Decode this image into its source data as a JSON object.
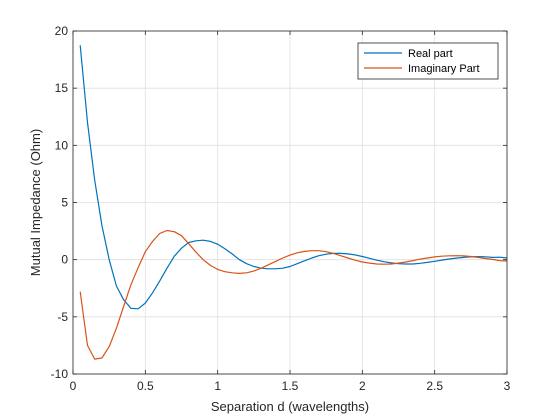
{
  "chart_data": {
    "type": "line",
    "xlabel": "Separation d (wavelengths)",
    "ylabel": "Mutual Impedance (Ohm)",
    "xlim": [
      0,
      3
    ],
    "ylim": [
      -10,
      20
    ],
    "xticks": [
      0,
      0.5,
      1,
      1.5,
      2,
      2.5,
      3
    ],
    "xtick_labels": [
      "0",
      "0.5",
      "1",
      "1.5",
      "2",
      "2.5",
      "3"
    ],
    "yticks": [
      -10,
      -5,
      0,
      5,
      10,
      15,
      20
    ],
    "ytick_labels": [
      "-10",
      "-5",
      "0",
      "5",
      "10",
      "15",
      "20"
    ],
    "grid": true,
    "legend_position": "top-right",
    "series": [
      {
        "name": "Real part",
        "color": "#0072BD",
        "x": [
          0.05,
          0.1,
          0.15,
          0.2,
          0.25,
          0.3,
          0.35,
          0.4,
          0.45,
          0.5,
          0.55,
          0.6,
          0.65,
          0.7,
          0.75,
          0.8,
          0.85,
          0.9,
          0.95,
          1.0,
          1.05,
          1.1,
          1.15,
          1.2,
          1.25,
          1.3,
          1.35,
          1.4,
          1.45,
          1.5,
          1.55,
          1.6,
          1.65,
          1.7,
          1.75,
          1.8,
          1.85,
          1.9,
          1.95,
          2.0,
          2.05,
          2.1,
          2.15,
          2.2,
          2.25,
          2.3,
          2.35,
          2.4,
          2.45,
          2.5,
          2.55,
          2.6,
          2.65,
          2.7,
          2.75,
          2.8,
          2.85,
          2.9,
          2.95,
          3.0
        ],
        "y": [
          18.75,
          12.0,
          6.95,
          3.0,
          0.0,
          -2.3,
          -3.5,
          -4.25,
          -4.3,
          -3.8,
          -2.9,
          -1.85,
          -0.75,
          0.3,
          1.0,
          1.5,
          1.65,
          1.7,
          1.6,
          1.35,
          0.95,
          0.5,
          0.0,
          -0.35,
          -0.6,
          -0.75,
          -0.8,
          -0.8,
          -0.75,
          -0.6,
          -0.35,
          -0.1,
          0.15,
          0.35,
          0.48,
          0.55,
          0.55,
          0.5,
          0.42,
          0.28,
          0.12,
          -0.05,
          -0.18,
          -0.28,
          -0.35,
          -0.38,
          -0.38,
          -0.32,
          -0.24,
          -0.14,
          -0.04,
          0.06,
          0.14,
          0.2,
          0.25,
          0.27,
          0.25,
          0.2,
          0.22,
          0.15
        ]
      },
      {
        "name": "Imaginary Part",
        "color": "#D95319",
        "x": [
          0.05,
          0.1,
          0.15,
          0.2,
          0.25,
          0.3,
          0.35,
          0.4,
          0.45,
          0.5,
          0.55,
          0.6,
          0.65,
          0.7,
          0.75,
          0.8,
          0.85,
          0.9,
          0.95,
          1.0,
          1.05,
          1.1,
          1.15,
          1.2,
          1.25,
          1.3,
          1.35,
          1.4,
          1.45,
          1.5,
          1.55,
          1.6,
          1.65,
          1.7,
          1.75,
          1.8,
          1.85,
          1.9,
          1.95,
          2.0,
          2.05,
          2.1,
          2.15,
          2.2,
          2.25,
          2.3,
          2.35,
          2.4,
          2.45,
          2.5,
          2.55,
          2.6,
          2.65,
          2.7,
          2.75,
          2.8,
          2.85,
          2.9,
          2.95,
          3.0
        ],
        "y": [
          -2.8,
          -7.5,
          -8.7,
          -8.6,
          -7.6,
          -6.0,
          -4.1,
          -2.2,
          -0.7,
          0.7,
          1.6,
          2.3,
          2.55,
          2.45,
          2.1,
          1.4,
          0.65,
          0.0,
          -0.5,
          -0.85,
          -1.05,
          -1.15,
          -1.2,
          -1.15,
          -1.0,
          -0.75,
          -0.45,
          -0.15,
          0.15,
          0.4,
          0.6,
          0.72,
          0.78,
          0.78,
          0.7,
          0.55,
          0.35,
          0.15,
          -0.05,
          -0.2,
          -0.3,
          -0.38,
          -0.4,
          -0.38,
          -0.3,
          -0.2,
          -0.08,
          0.05,
          0.15,
          0.24,
          0.3,
          0.34,
          0.35,
          0.33,
          0.28,
          0.2,
          0.1,
          0.02,
          -0.08,
          -0.12
        ]
      }
    ]
  }
}
